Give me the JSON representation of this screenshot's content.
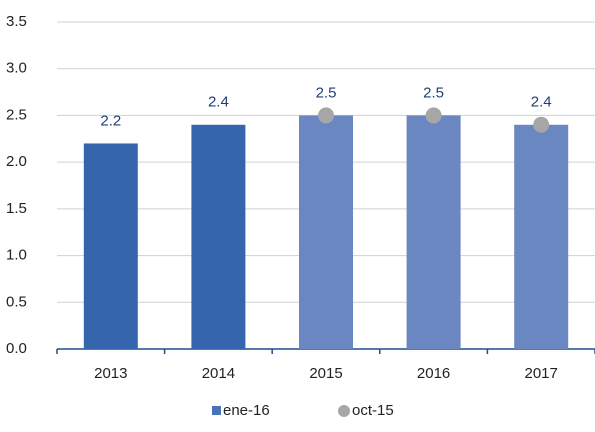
{
  "chart_data": {
    "type": "bar",
    "categories": [
      "2013",
      "2014",
      "2015",
      "2016",
      "2017"
    ],
    "series": [
      {
        "name": "ene-16",
        "type": "bar",
        "color": "#4a72b8",
        "colors": [
          "#3566ad",
          "#3566ad",
          "#6a87c2",
          "#6a87c2",
          "#6a87c2"
        ],
        "values": [
          2.2,
          2.4,
          2.5,
          2.5,
          2.4
        ]
      },
      {
        "name": "oct-15",
        "type": "scatter",
        "color": "#a6a6a6",
        "values": [
          null,
          null,
          2.5,
          2.5,
          2.4
        ]
      }
    ],
    "ylim": [
      0,
      3.5
    ],
    "yticks": [
      {
        "value": 0,
        "label": "0.0"
      },
      0.5,
      {
        "value": 1,
        "label": "1.0"
      },
      1.5,
      {
        "value": 2,
        "label": "2.0"
      },
      2.5,
      {
        "value": 3,
        "label": "3.0"
      },
      3.5
    ],
    "grid": true,
    "legend": "bottom"
  }
}
